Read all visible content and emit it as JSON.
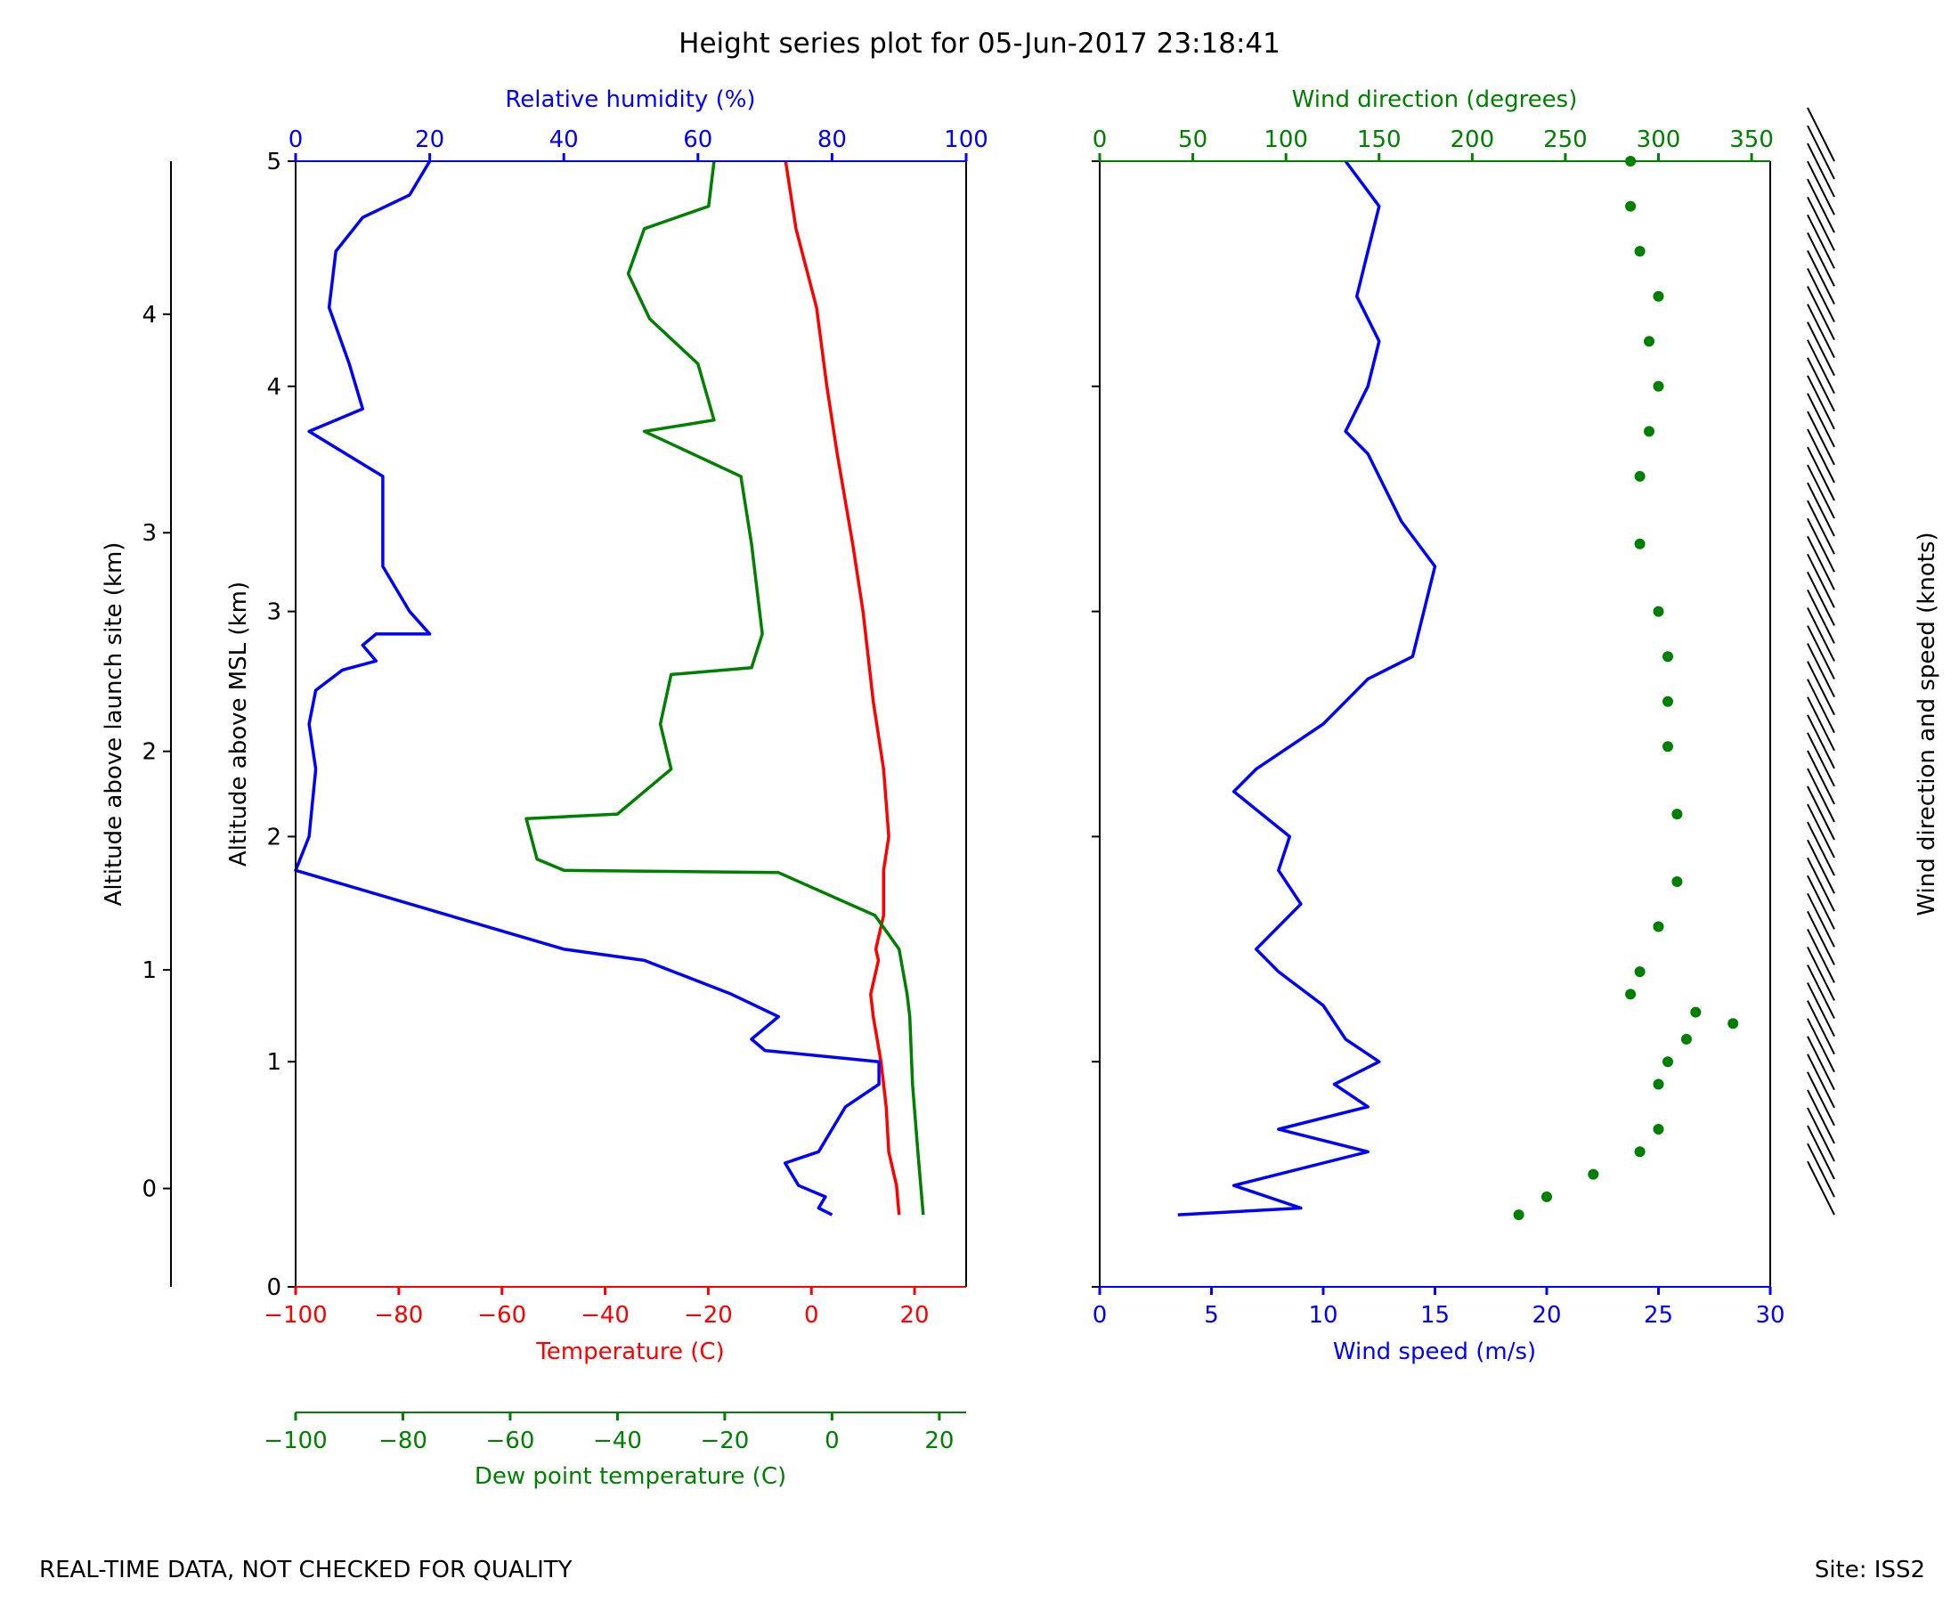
{
  "title": "Height series plot for 05-Jun-2017 23:18:41",
  "footer": {
    "left": "REAL-TIME DATA, NOT CHECKED FOR QUALITY",
    "right": "Site: ISS2"
  },
  "colors": {
    "temperature": "#ff0000",
    "dewpoint": "#008000",
    "humidity": "#0000ff",
    "wind_speed": "#0000ff",
    "wind_dir": "#008000",
    "text": "#000000"
  },
  "chart_data": [
    {
      "type": "line",
      "name": "thermodynamic-panel",
      "axes": {
        "msl": {
          "label": "Altitude above MSL (km)",
          "range": [
            0,
            5
          ],
          "ticks": [
            0,
            1,
            2,
            3,
            4,
            5
          ]
        },
        "launch_site": {
          "label": "Altitude above launch site (km)",
          "range": [
            -0.45,
            4.7
          ],
          "ticks": [
            0,
            1,
            2,
            3,
            4
          ],
          "tick_labels": [
            "0",
            "1",
            "2",
            "3",
            "4"
          ]
        },
        "temperature": {
          "label": "Temperature (C)",
          "range": [
            -100,
            30
          ],
          "ticks": [
            -100,
            -80,
            -60,
            -40,
            -20,
            0,
            20
          ],
          "tick_labels": [
            "−100",
            "−80",
            "−60",
            "−40",
            "−20",
            "0",
            "20"
          ]
        },
        "dewpoint": {
          "label": "Dew point temperature (C)",
          "range": [
            -100,
            25
          ],
          "ticks": [
            -100,
            -80,
            -60,
            -40,
            -20,
            0,
            20
          ],
          "tick_labels": [
            "−100",
            "−80",
            "−60",
            "−40",
            "−20",
            "0",
            "20"
          ]
        },
        "humidity": {
          "label": "Relative humidity (%)",
          "range": [
            0,
            100
          ],
          "ticks": [
            0,
            20,
            40,
            60,
            80,
            100
          ],
          "tick_labels": [
            "0",
            "20",
            "40",
            "60",
            "80",
            "100"
          ]
        }
      },
      "series": [
        {
          "name": "Temperature (C)",
          "axis": "temperature",
          "color": "#ff0000",
          "points": [
            [
              17,
              0.32
            ],
            [
              16.5,
              0.45
            ],
            [
              15,
              0.6
            ],
            [
              14.5,
              0.8
            ],
            [
              13.5,
              1.0
            ],
            [
              12,
              1.2
            ],
            [
              11.5,
              1.3
            ],
            [
              13,
              1.45
            ],
            [
              12.5,
              1.5
            ],
            [
              14,
              1.65
            ],
            [
              14,
              1.85
            ],
            [
              15,
              2.0
            ],
            [
              14,
              2.3
            ],
            [
              12,
              2.6
            ],
            [
              10,
              3.0
            ],
            [
              8,
              3.3
            ],
            [
              5,
              3.7
            ],
            [
              3,
              4.0
            ],
            [
              1,
              4.35
            ],
            [
              -3,
              4.7
            ],
            [
              -5,
              5.0
            ]
          ]
        },
        {
          "name": "Dew point temperature (C)",
          "axis": "dewpoint",
          "color": "#008000",
          "points": [
            [
              17,
              0.32
            ],
            [
              16,
              0.6
            ],
            [
              15,
              0.9
            ],
            [
              14.5,
              1.2
            ],
            [
              14,
              1.3
            ],
            [
              12.5,
              1.5
            ],
            [
              8,
              1.65
            ],
            [
              -10,
              1.84
            ],
            [
              -50,
              1.85
            ],
            [
              -55,
              1.9
            ],
            [
              -57,
              2.08
            ],
            [
              -40,
              2.1
            ],
            [
              -30,
              2.3
            ],
            [
              -32,
              2.5
            ],
            [
              -30,
              2.72
            ],
            [
              -15,
              2.75
            ],
            [
              -13,
              2.9
            ],
            [
              -15,
              3.3
            ],
            [
              -17,
              3.6
            ],
            [
              -35,
              3.8
            ],
            [
              -22,
              3.85
            ],
            [
              -25,
              4.1
            ],
            [
              -34,
              4.3
            ],
            [
              -38,
              4.5
            ],
            [
              -35,
              4.7
            ],
            [
              -23,
              4.8
            ],
            [
              -22,
              5.0
            ]
          ]
        },
        {
          "name": "Relative humidity (%)",
          "axis": "humidity",
          "color": "#0000ff",
          "points": [
            [
              80,
              0.32
            ],
            [
              78,
              0.35
            ],
            [
              79,
              0.4
            ],
            [
              75,
              0.45
            ],
            [
              73,
              0.55
            ],
            [
              78,
              0.6
            ],
            [
              80,
              0.7
            ],
            [
              82,
              0.8
            ],
            [
              87,
              0.9
            ],
            [
              87,
              0.96
            ],
            [
              87,
              1.0
            ],
            [
              70,
              1.05
            ],
            [
              68,
              1.1
            ],
            [
              72,
              1.2
            ],
            [
              65,
              1.3
            ],
            [
              52,
              1.45
            ],
            [
              40,
              1.5
            ],
            [
              0,
              1.85
            ],
            [
              2,
              2.0
            ],
            [
              3,
              2.3
            ],
            [
              2,
              2.5
            ],
            [
              3,
              2.65
            ],
            [
              7,
              2.74
            ],
            [
              12,
              2.78
            ],
            [
              10,
              2.85
            ],
            [
              12,
              2.9
            ],
            [
              20,
              2.9
            ],
            [
              17,
              3.0
            ],
            [
              13,
              3.2
            ],
            [
              13,
              3.4
            ],
            [
              13,
              3.6
            ],
            [
              2,
              3.8
            ],
            [
              10,
              3.9
            ],
            [
              8,
              4.1
            ],
            [
              5,
              4.35
            ],
            [
              6,
              4.6
            ],
            [
              10,
              4.75
            ],
            [
              17,
              4.85
            ],
            [
              20,
              5.0
            ]
          ]
        }
      ]
    },
    {
      "type": "line",
      "name": "wind-panel",
      "axes": {
        "altitude": {
          "range": [
            0,
            5
          ],
          "ticks": [
            0,
            1,
            2,
            3,
            4,
            5
          ]
        },
        "wind_speed": {
          "label": "Wind speed (m/s)",
          "range": [
            0,
            30
          ],
          "ticks": [
            0,
            5,
            10,
            15,
            20,
            25,
            30
          ],
          "tick_labels": [
            "0",
            "5",
            "10",
            "15",
            "20",
            "25",
            "30"
          ]
        },
        "wind_direction": {
          "label": "Wind direction (degrees)",
          "range": [
            0,
            360
          ],
          "ticks": [
            0,
            50,
            100,
            150,
            200,
            250,
            300,
            350
          ],
          "tick_labels": [
            "0",
            "50",
            "100",
            "150",
            "200",
            "250",
            "300",
            "350"
          ]
        }
      },
      "series": [
        {
          "name": "Wind speed (m/s)",
          "axis": "wind_speed",
          "color": "#0000ff",
          "points": [
            [
              3.5,
              0.32
            ],
            [
              9,
              0.35
            ],
            [
              6,
              0.45
            ],
            [
              12,
              0.6
            ],
            [
              8,
              0.7
            ],
            [
              12,
              0.8
            ],
            [
              10.5,
              0.9
            ],
            [
              12.5,
              1.0
            ],
            [
              11,
              1.1
            ],
            [
              10,
              1.25
            ],
            [
              8,
              1.4
            ],
            [
              7,
              1.5
            ],
            [
              9,
              1.7
            ],
            [
              8,
              1.85
            ],
            [
              8.5,
              2.0
            ],
            [
              6,
              2.2
            ],
            [
              7,
              2.3
            ],
            [
              8.5,
              2.4
            ],
            [
              10,
              2.5
            ],
            [
              12,
              2.7
            ],
            [
              14,
              2.8
            ],
            [
              14.5,
              3.0
            ],
            [
              15,
              3.2
            ],
            [
              13.5,
              3.4
            ],
            [
              12,
              3.7
            ],
            [
              11,
              3.8
            ],
            [
              12,
              4.0
            ],
            [
              12.5,
              4.2
            ],
            [
              11.5,
              4.4
            ],
            [
              12,
              4.6
            ],
            [
              12.5,
              4.8
            ],
            [
              11,
              5.0
            ]
          ]
        },
        {
          "name": "Wind direction (degrees)",
          "axis": "wind_direction",
          "color": "#008000",
          "points": [
            [
              225,
              0.32
            ],
            [
              240,
              0.4
            ],
            [
              265,
              0.5
            ],
            [
              290,
              0.6
            ],
            [
              300,
              0.7
            ],
            [
              300,
              0.9
            ],
            [
              305,
              1.0
            ],
            [
              315,
              1.1
            ],
            [
              340,
              1.17
            ],
            [
              320,
              1.22
            ],
            [
              285,
              1.3
            ],
            [
              290,
              1.4
            ],
            [
              300,
              1.6
            ],
            [
              310,
              1.8
            ],
            [
              310,
              2.1
            ],
            [
              305,
              2.4
            ],
            [
              305,
              2.6
            ],
            [
              305,
              2.8
            ],
            [
              300,
              3.0
            ],
            [
              290,
              3.3
            ],
            [
              290,
              3.6
            ],
            [
              295,
              3.8
            ],
            [
              300,
              4.0
            ],
            [
              295,
              4.2
            ],
            [
              300,
              4.4
            ],
            [
              290,
              4.6
            ],
            [
              285,
              4.8
            ],
            [
              285,
              5.0
            ]
          ]
        }
      ],
      "barbs": {
        "label": "Wind direction and speed (knots)",
        "count": 60
      }
    }
  ]
}
